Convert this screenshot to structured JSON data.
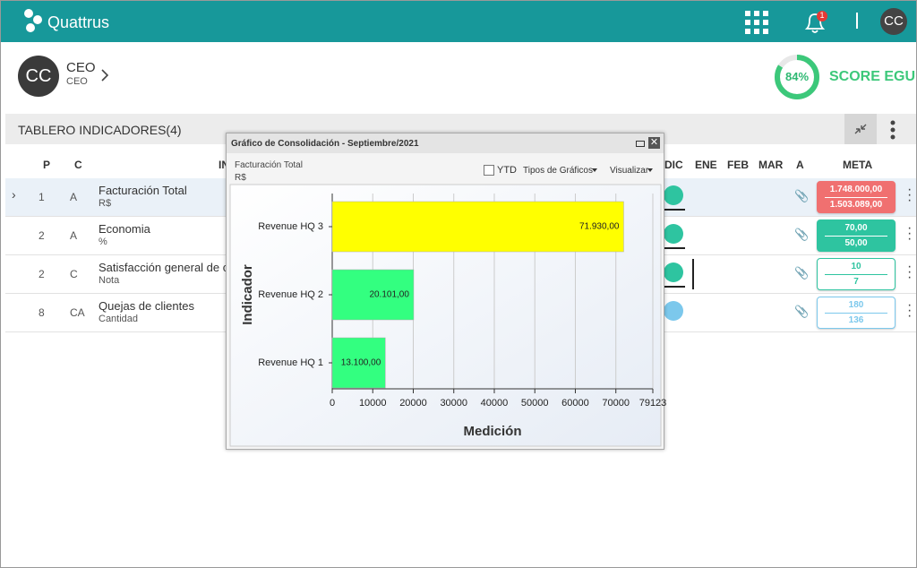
{
  "header": {
    "brand": "Quattrus",
    "badge": "1",
    "avatar": "CC"
  },
  "profile": {
    "avatar": "CC",
    "role": "CEO",
    "sub": "CEO"
  },
  "score": {
    "value": 84,
    "label": "84%",
    "title": "SCORE EGU"
  },
  "dashboard": {
    "title": "TABLERO INDICADORES(4)"
  },
  "table": {
    "columns": [
      "P",
      "C",
      "IN",
      "DIC",
      "ENE",
      "FEB",
      "MAR",
      "A",
      "META"
    ],
    "rows": [
      {
        "p": "1",
        "c": "A",
        "name": "Facturación Total",
        "unit": "R$",
        "meta": [
          "1.748.000,00",
          "1.503.089,00"
        ],
        "status_color": "#2ec4a0"
      },
      {
        "p": "2",
        "c": "A",
        "name": "Economia",
        "unit": "%",
        "meta": [
          "70,00",
          "50,00"
        ],
        "status_color": "#2ec4a0"
      },
      {
        "p": "2",
        "c": "C",
        "name": "Satisfacción general de c",
        "unit": "Nota",
        "meta": [
          "10",
          "7"
        ],
        "status_color": "#2ec4a0"
      },
      {
        "p": "8",
        "c": "CA",
        "name": "Quejas de clientes",
        "unit": "Cantidad",
        "meta": [
          "180",
          "136"
        ],
        "status_color": "#7cc8ec"
      }
    ]
  },
  "popup": {
    "title": "Gráfico de Consolidación - Septiembre/2021",
    "indicator": "Facturación Total",
    "unit": "R$",
    "ytd": "YTD",
    "chart_types": "Tipos de Gráficos",
    "view": "Visualizar"
  },
  "chart_data": {
    "type": "bar",
    "categories": [
      "Revenue HQ 1",
      "Revenue HQ 2",
      "Revenue HQ 3"
    ],
    "values": [
      13100,
      20101,
      71930
    ],
    "value_labels": [
      "13.100,00",
      "20.101,00",
      "71.930,00"
    ],
    "colors": [
      "#33ff80",
      "#33ff80",
      "#ffff00"
    ],
    "xlim": [
      0,
      79123
    ],
    "xticks": [
      0,
      10000,
      20000,
      30000,
      40000,
      50000,
      60000,
      70000,
      79123
    ],
    "xlabel": "Medición",
    "ylabel": "Indicador",
    "grid": true
  }
}
